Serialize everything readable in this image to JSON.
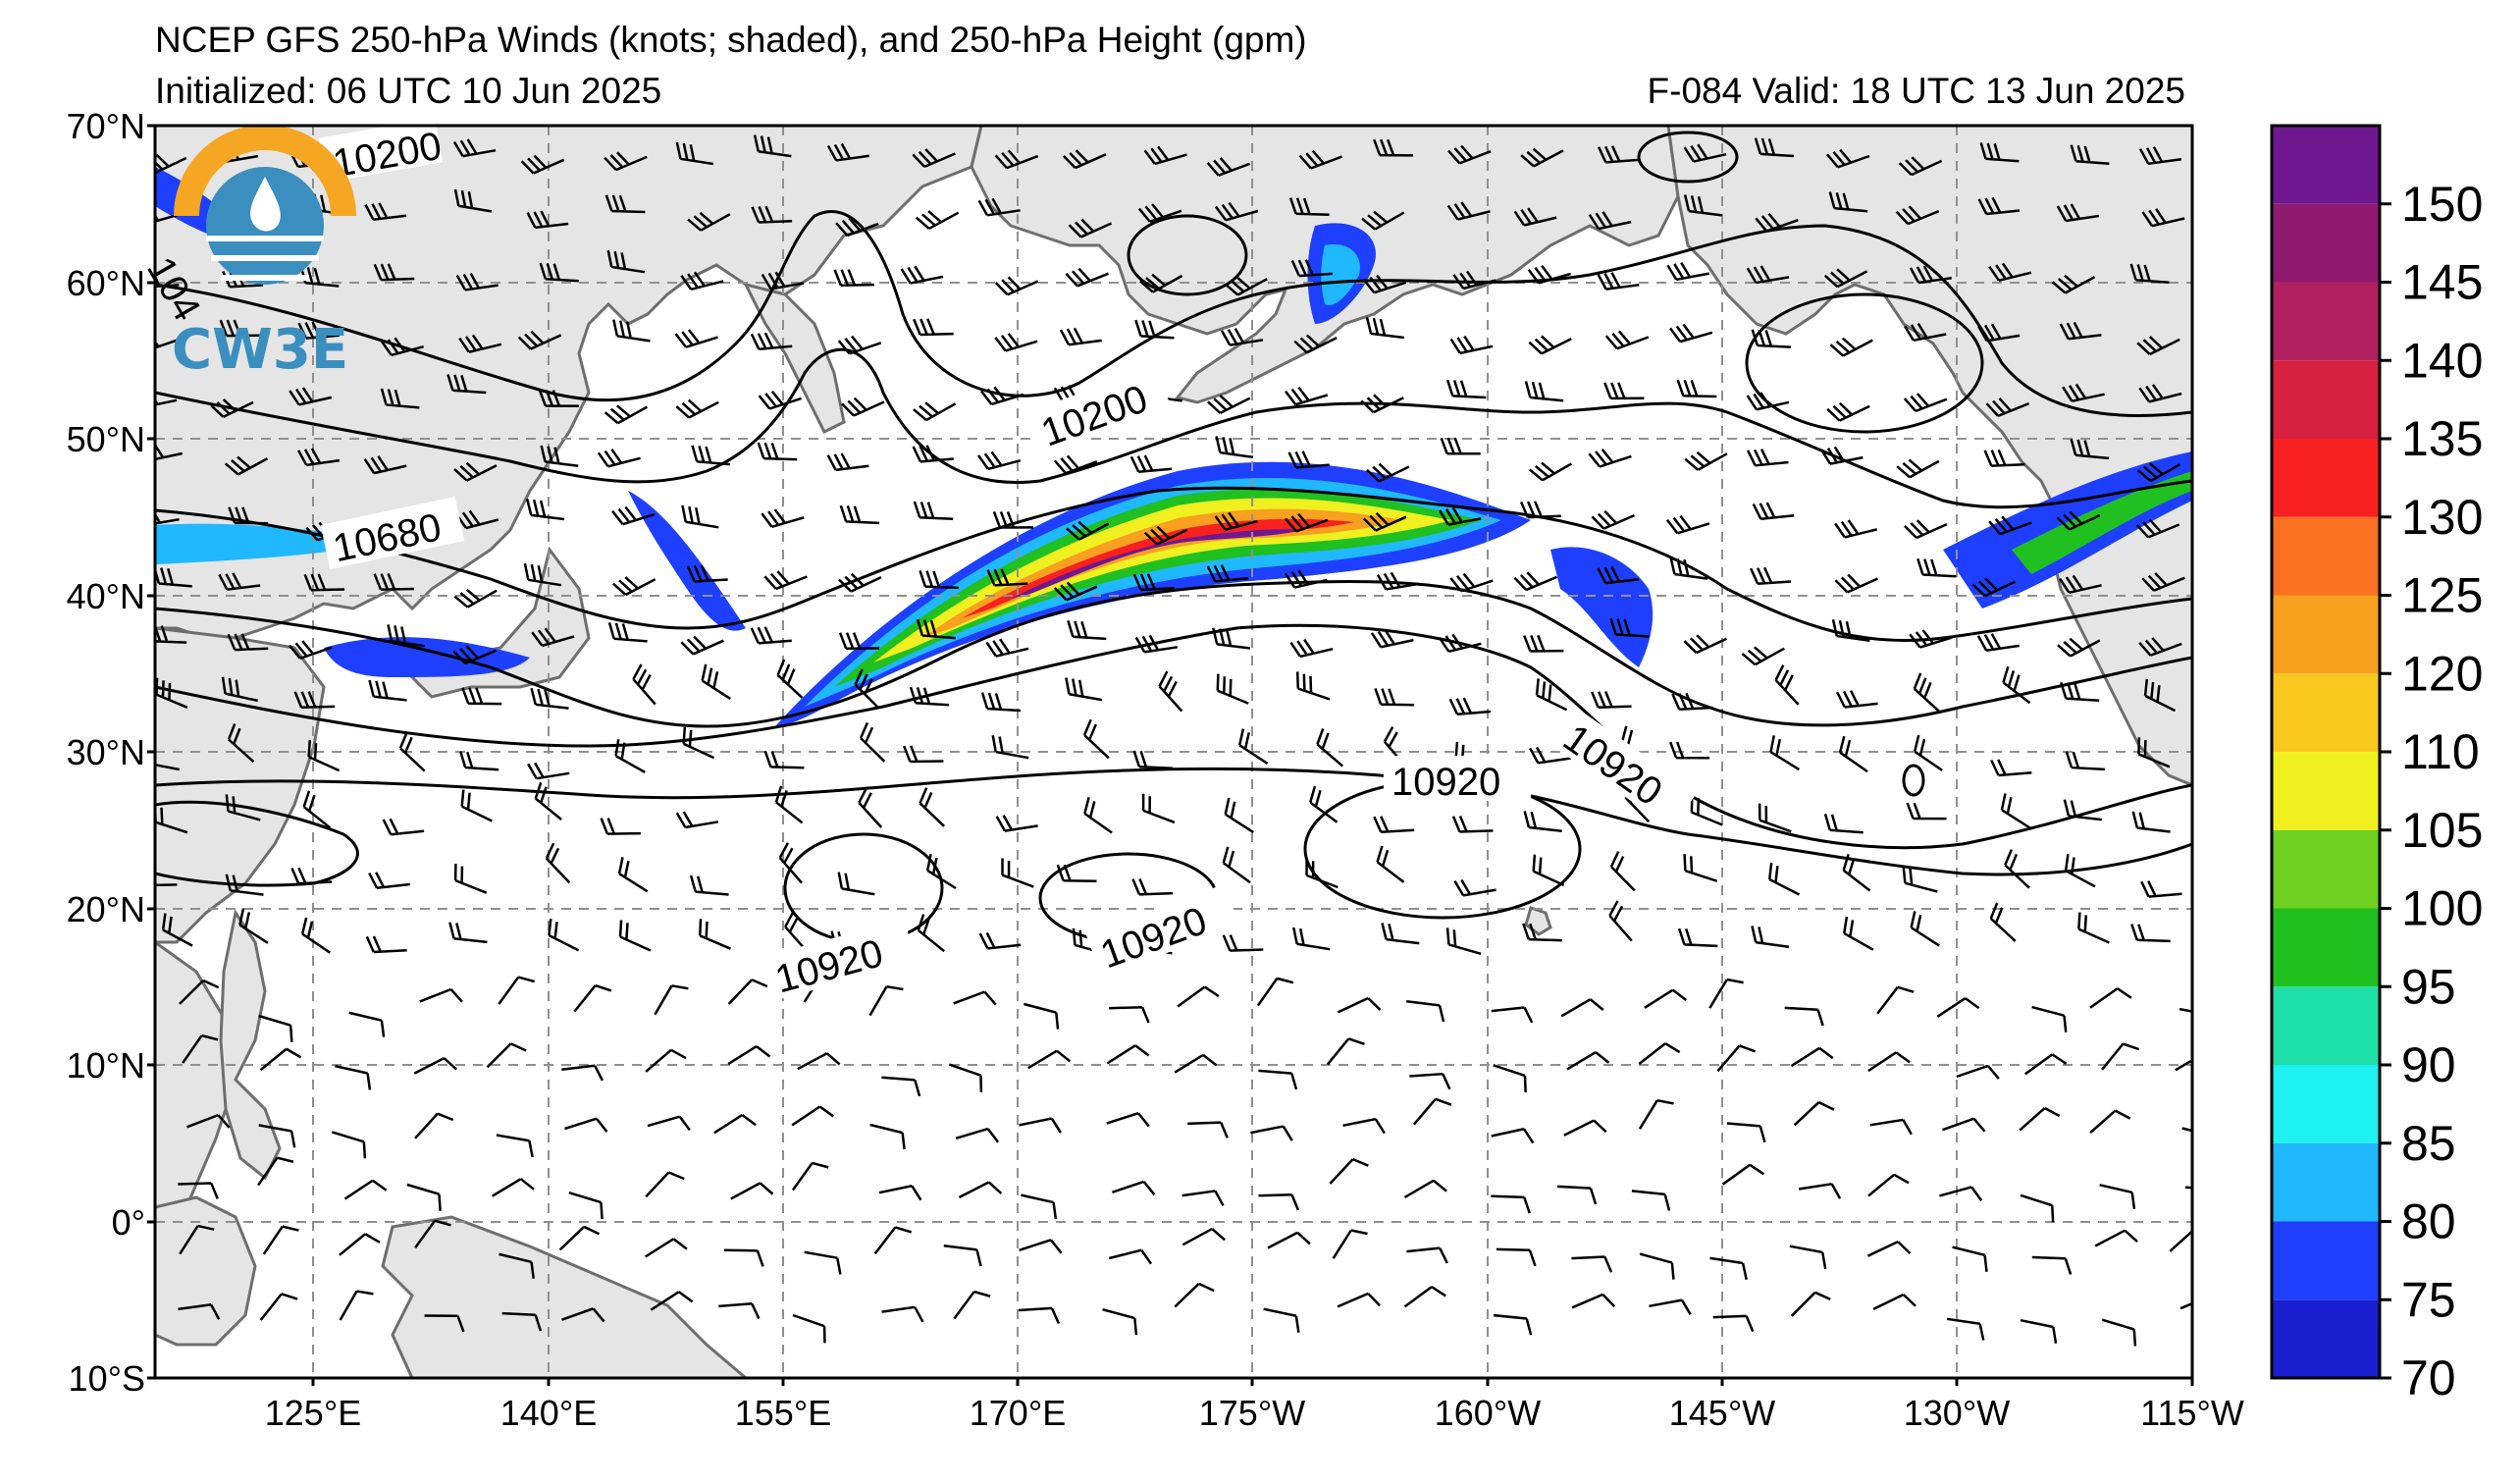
{
  "header": {
    "title": "NCEP GFS 250-hPa Winds (knots; shaded), and 250-hPa Height (gpm)",
    "initialized": "Initialized: 06 UTC 10 Jun 2025",
    "valid": "F-084  Valid: 18 UTC 13 Jun 2025"
  },
  "logo": {
    "text": "CW3E"
  },
  "axes": {
    "lat_labels": [
      "70°N",
      "60°N",
      "50°N",
      "40°N",
      "30°N",
      "20°N",
      "10°N",
      "0°",
      "10°S"
    ],
    "lon_labels": [
      "125°E",
      "140°E",
      "155°E",
      "170°E",
      "175°W",
      "160°W",
      "145°W",
      "130°W",
      "115°W"
    ]
  },
  "colorbar": {
    "labels": [
      "70",
      "75",
      "80",
      "85",
      "90",
      "95",
      "100",
      "105",
      "110",
      "120",
      "125",
      "130",
      "135",
      "140",
      "145",
      "150"
    ],
    "colors": [
      "#1a1fcf",
      "#1f3fff",
      "#20b8ff",
      "#1ff0f0",
      "#1fe0a8",
      "#20c020",
      "#70d020",
      "#f0f020",
      "#f8c820",
      "#f8a020",
      "#f87020",
      "#f82020",
      "#d82040",
      "#b02060",
      "#901a70",
      "#701890"
    ]
  },
  "contours": {
    "labels": [
      "10200",
      "10200",
      "10680",
      "10920",
      "10920",
      "10920",
      "10920",
      "104"
    ]
  },
  "colors": {
    "land": "#e5e5e5",
    "coast": "#6e6e6e",
    "grid": "#909090"
  }
}
